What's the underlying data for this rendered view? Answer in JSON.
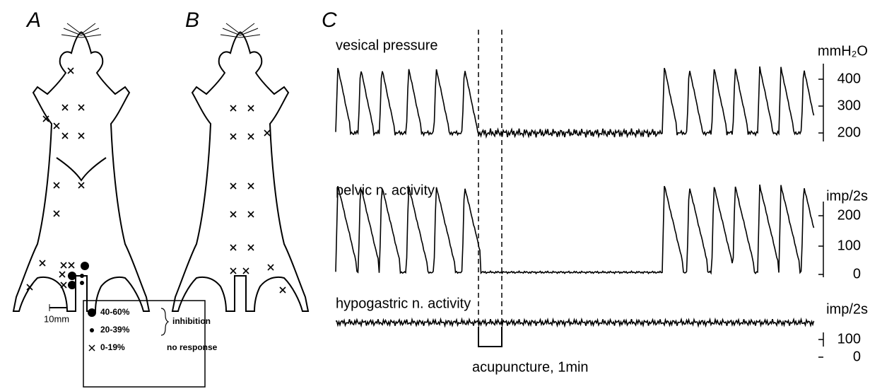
{
  "panels": [
    {
      "label": "A"
    },
    {
      "label": "B"
    },
    {
      "label": "C"
    }
  ],
  "panel_a": {
    "scale_bar": "10mm"
  },
  "legend": {
    "rows": [
      {
        "range": "40-60%"
      },
      {
        "range": "20-39%"
      },
      {
        "range": "0-19%"
      }
    ],
    "inhibition": "inhibition",
    "no_response": "no response"
  },
  "traces": [
    {
      "label": "vesical pressure",
      "unit": "mmH₂O",
      "ticks": [
        "400",
        "300",
        "200"
      ]
    },
    {
      "label": "pelvic n. activity",
      "unit": "imp/2s",
      "ticks": [
        "200",
        "100",
        "0"
      ]
    },
    {
      "label": "hypogastric n. activity",
      "unit": "imp/2s",
      "ticks": [
        "100",
        "0"
      ]
    }
  ],
  "stimulus": "acupuncture, 1min"
}
